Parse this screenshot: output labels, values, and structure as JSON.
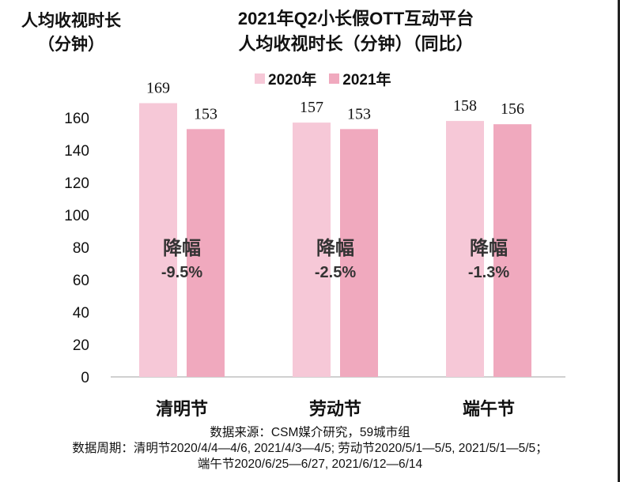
{
  "chart_data": {
    "type": "bar",
    "title_lines": [
      "2021年Q2小长假OTT互动平台",
      "人均收视时长（分钟）（同比）"
    ],
    "ylabel_lines": [
      "人均收视时长",
      "（分钟）"
    ],
    "xlabel": "",
    "categories": [
      "清明节",
      "劳动节",
      "端午节"
    ],
    "series": [
      {
        "name": "2020年",
        "color": "#f6c8d7",
        "values": [
          169,
          157,
          158
        ]
      },
      {
        "name": "2021年",
        "color": "#f0a9be",
        "values": [
          153,
          153,
          156
        ]
      }
    ],
    "annotations": [
      {
        "label": "降幅",
        "value": "-9.5%"
      },
      {
        "label": "降幅",
        "value": "-2.5%"
      },
      {
        "label": "降幅",
        "value": "-1.3%"
      }
    ],
    "yticks": [
      0,
      20,
      40,
      60,
      80,
      100,
      120,
      140,
      160
    ],
    "ylim": [
      0,
      160
    ],
    "grid": false,
    "legend_position": "top-center"
  },
  "footer": {
    "source": "数据来源：CSM媒介研究，59城市组",
    "period_line1": "数据周期：清明节2020/4/4—4/6, 2021/4/3—4/5; 劳动节2020/5/1—5/5, 2021/5/1—5/5；",
    "period_line2": "端午节2020/6/25—6/27, 2021/6/12—6/14"
  }
}
